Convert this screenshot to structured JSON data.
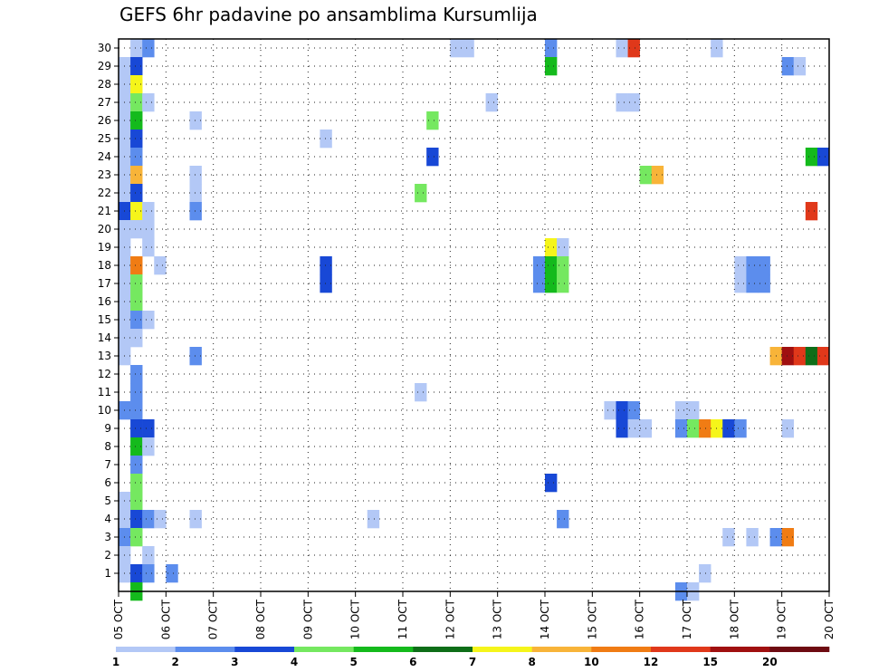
{
  "chart_data": {
    "type": "heatmap",
    "title": "GEFS 6hr padavine po ansamblima Kursumlija",
    "xlabel": "",
    "ylabel": "",
    "x_tick_labels": [
      "05 OCT",
      "06 OCT",
      "07 OCT",
      "08 OCT",
      "09 OCT",
      "10 OCT",
      "11 OCT",
      "12 OCT",
      "13 OCT",
      "14 OCT",
      "15 OCT",
      "16 OCT",
      "17 OCT",
      "18 OCT",
      "19 OCT",
      "20 OCT"
    ],
    "y_tick_labels": [
      "1",
      "2",
      "3",
      "4",
      "5",
      "6",
      "7",
      "8",
      "9",
      "10",
      "11",
      "12",
      "13",
      "14",
      "15",
      "16",
      "17",
      "18",
      "19",
      "20",
      "21",
      "22",
      "23",
      "24",
      "25",
      "26",
      "27",
      "28",
      "29",
      "30"
    ],
    "x_range_days": [
      0,
      15
    ],
    "y_range": [
      0,
      30
    ],
    "time_step_hours": 6,
    "grid": true,
    "legend_position": "bottom",
    "color_scale": {
      "labels": [
        "1",
        "2",
        "3",
        "4",
        "5",
        "6",
        "7",
        "8",
        "10",
        "12",
        "15",
        "20"
      ],
      "colors": [
        "#b3c8f6",
        "#5c8ded",
        "#1848d6",
        "#75e860",
        "#14ba1c",
        "#0e6e18",
        "#f5f51a",
        "#f8b439",
        "#f07c14",
        "#e0381a",
        "#a01010",
        "#6e0b12"
      ]
    },
    "cells": [
      {
        "member": 30,
        "step": 1,
        "level": 0
      },
      {
        "member": 30,
        "step": 2,
        "level": 1
      },
      {
        "member": 30,
        "step": 28,
        "level": 0
      },
      {
        "member": 30,
        "step": 29,
        "level": 0
      },
      {
        "member": 30,
        "step": 36,
        "level": 1
      },
      {
        "member": 30,
        "step": 42,
        "level": 0
      },
      {
        "member": 30,
        "step": 43,
        "level": 9
      },
      {
        "member": 30,
        "step": 50,
        "level": 0
      },
      {
        "member": 29,
        "step": 0,
        "level": 0
      },
      {
        "member": 29,
        "step": 1,
        "level": 2
      },
      {
        "member": 29,
        "step": 36,
        "level": 4
      },
      {
        "member": 29,
        "step": 56,
        "level": 1
      },
      {
        "member": 29,
        "step": 57,
        "level": 0
      },
      {
        "member": 28,
        "step": 0,
        "level": 0
      },
      {
        "member": 28,
        "step": 1,
        "level": 6
      },
      {
        "member": 27,
        "step": 0,
        "level": 0
      },
      {
        "member": 27,
        "step": 1,
        "level": 3
      },
      {
        "member": 27,
        "step": 2,
        "level": 0
      },
      {
        "member": 27,
        "step": 31,
        "level": 0
      },
      {
        "member": 27,
        "step": 42,
        "level": 0
      },
      {
        "member": 27,
        "step": 43,
        "level": 0
      },
      {
        "member": 26,
        "step": 0,
        "level": 0
      },
      {
        "member": 26,
        "step": 1,
        "level": 4
      },
      {
        "member": 26,
        "step": 6,
        "level": 0
      },
      {
        "member": 26,
        "step": 26,
        "level": 3
      },
      {
        "member": 25,
        "step": 0,
        "level": 0
      },
      {
        "member": 25,
        "step": 1,
        "level": 2
      },
      {
        "member": 25,
        "step": 17,
        "level": 0
      },
      {
        "member": 24,
        "step": 0,
        "level": 0
      },
      {
        "member": 24,
        "step": 1,
        "level": 1
      },
      {
        "member": 24,
        "step": 26,
        "level": 2
      },
      {
        "member": 24,
        "step": 58,
        "level": 4
      },
      {
        "member": 24,
        "step": 59,
        "level": 2
      },
      {
        "member": 23,
        "step": 0,
        "level": 0
      },
      {
        "member": 23,
        "step": 1,
        "level": 7
      },
      {
        "member": 23,
        "step": 6,
        "level": 0
      },
      {
        "member": 23,
        "step": 44,
        "level": 3
      },
      {
        "member": 23,
        "step": 45,
        "level": 7
      },
      {
        "member": 22,
        "step": 0,
        "level": 0
      },
      {
        "member": 22,
        "step": 1,
        "level": 2
      },
      {
        "member": 22,
        "step": 6,
        "level": 0
      },
      {
        "member": 22,
        "step": 25,
        "level": 3
      },
      {
        "member": 21,
        "step": 0,
        "level": 2
      },
      {
        "member": 21,
        "step": 1,
        "level": 6
      },
      {
        "member": 21,
        "step": 2,
        "level": 0
      },
      {
        "member": 21,
        "step": 6,
        "level": 1
      },
      {
        "member": 21,
        "step": 58,
        "level": 9
      },
      {
        "member": 20,
        "step": 0,
        "level": 0
      },
      {
        "member": 20,
        "step": 1,
        "level": 0
      },
      {
        "member": 20,
        "step": 2,
        "level": 0
      },
      {
        "member": 19,
        "step": 0,
        "level": 0
      },
      {
        "member": 19,
        "step": 2,
        "level": 0
      },
      {
        "member": 19,
        "step": 36,
        "level": 6
      },
      {
        "member": 19,
        "step": 37,
        "level": 0
      },
      {
        "member": 18,
        "step": 0,
        "level": 0
      },
      {
        "member": 18,
        "step": 1,
        "level": 8
      },
      {
        "member": 18,
        "step": 3,
        "level": 0
      },
      {
        "member": 18,
        "step": 17,
        "level": 2
      },
      {
        "member": 18,
        "step": 35,
        "level": 1
      },
      {
        "member": 18,
        "step": 36,
        "level": 4
      },
      {
        "member": 18,
        "step": 37,
        "level": 3
      },
      {
        "member": 18,
        "step": 52,
        "level": 0
      },
      {
        "member": 18,
        "step": 53,
        "level": 1
      },
      {
        "member": 18,
        "step": 54,
        "level": 1
      },
      {
        "member": 17,
        "step": 0,
        "level": 0
      },
      {
        "member": 17,
        "step": 1,
        "level": 3
      },
      {
        "member": 17,
        "step": 17,
        "level": 2
      },
      {
        "member": 17,
        "step": 35,
        "level": 1
      },
      {
        "member": 17,
        "step": 36,
        "level": 4
      },
      {
        "member": 17,
        "step": 37,
        "level": 3
      },
      {
        "member": 17,
        "step": 52,
        "level": 0
      },
      {
        "member": 17,
        "step": 53,
        "level": 1
      },
      {
        "member": 17,
        "step": 54,
        "level": 1
      },
      {
        "member": 16,
        "step": 0,
        "level": 0
      },
      {
        "member": 16,
        "step": 1,
        "level": 3
      },
      {
        "member": 15,
        "step": 0,
        "level": 0
      },
      {
        "member": 15,
        "step": 1,
        "level": 1
      },
      {
        "member": 15,
        "step": 2,
        "level": 0
      },
      {
        "member": 14,
        "step": 0,
        "level": 0
      },
      {
        "member": 14,
        "step": 1,
        "level": 0
      },
      {
        "member": 13,
        "step": 0,
        "level": 0
      },
      {
        "member": 13,
        "step": 6,
        "level": 1
      },
      {
        "member": 13,
        "step": 55,
        "level": 7
      },
      {
        "member": 13,
        "step": 56,
        "level": 10
      },
      {
        "member": 13,
        "step": 57,
        "level": 9
      },
      {
        "member": 13,
        "step": 58,
        "level": 5
      },
      {
        "member": 13,
        "step": 59,
        "level": 9
      },
      {
        "member": 12,
        "step": 1,
        "level": 1
      },
      {
        "member": 11,
        "step": 1,
        "level": 1
      },
      {
        "member": 11,
        "step": 25,
        "level": 0
      },
      {
        "member": 10,
        "step": 0,
        "level": 1
      },
      {
        "member": 10,
        "step": 1,
        "level": 1
      },
      {
        "member": 10,
        "step": 41,
        "level": 0
      },
      {
        "member": 10,
        "step": 42,
        "level": 2
      },
      {
        "member": 10,
        "step": 43,
        "level": 1
      },
      {
        "member": 10,
        "step": 47,
        "level": 0
      },
      {
        "member": 10,
        "step": 48,
        "level": 0
      },
      {
        "member": 9,
        "step": 1,
        "level": 2
      },
      {
        "member": 9,
        "step": 2,
        "level": 2
      },
      {
        "member": 9,
        "step": 42,
        "level": 2
      },
      {
        "member": 9,
        "step": 43,
        "level": 0
      },
      {
        "member": 9,
        "step": 44,
        "level": 0
      },
      {
        "member": 9,
        "step": 47,
        "level": 1
      },
      {
        "member": 9,
        "step": 48,
        "level": 3
      },
      {
        "member": 9,
        "step": 49,
        "level": 8
      },
      {
        "member": 9,
        "step": 50,
        "level": 6
      },
      {
        "member": 9,
        "step": 51,
        "level": 2
      },
      {
        "member": 9,
        "step": 52,
        "level": 1
      },
      {
        "member": 9,
        "step": 56,
        "level": 0
      },
      {
        "member": 8,
        "step": 1,
        "level": 4
      },
      {
        "member": 8,
        "step": 2,
        "level": 0
      },
      {
        "member": 7,
        "step": 1,
        "level": 1
      },
      {
        "member": 6,
        "step": 1,
        "level": 3
      },
      {
        "member": 6,
        "step": 36,
        "level": 2
      },
      {
        "member": 5,
        "step": 0,
        "level": 0
      },
      {
        "member": 5,
        "step": 1,
        "level": 3
      },
      {
        "member": 4,
        "step": 0,
        "level": 0
      },
      {
        "member": 4,
        "step": 1,
        "level": 2
      },
      {
        "member": 4,
        "step": 2,
        "level": 1
      },
      {
        "member": 4,
        "step": 3,
        "level": 0
      },
      {
        "member": 4,
        "step": 6,
        "level": 0
      },
      {
        "member": 4,
        "step": 21,
        "level": 0
      },
      {
        "member": 4,
        "step": 37,
        "level": 1
      },
      {
        "member": 3,
        "step": 0,
        "level": 1
      },
      {
        "member": 3,
        "step": 1,
        "level": 3
      },
      {
        "member": 3,
        "step": 51,
        "level": 0
      },
      {
        "member": 3,
        "step": 53,
        "level": 0
      },
      {
        "member": 3,
        "step": 55,
        "level": 1
      },
      {
        "member": 3,
        "step": 56,
        "level": 8
      },
      {
        "member": 2,
        "step": 0,
        "level": 0
      },
      {
        "member": 2,
        "step": 2,
        "level": 0
      },
      {
        "member": 1,
        "step": 0,
        "level": 0
      },
      {
        "member": 1,
        "step": 1,
        "level": 2
      },
      {
        "member": 1,
        "step": 2,
        "level": 1
      },
      {
        "member": 1,
        "step": 4,
        "level": 1
      },
      {
        "member": 1,
        "step": 49,
        "level": 0
      },
      {
        "member": 0,
        "step": 1,
        "level": 4
      },
      {
        "member": 0,
        "step": 47,
        "level": 1
      },
      {
        "member": 0,
        "step": 48,
        "level": 0
      }
    ]
  }
}
